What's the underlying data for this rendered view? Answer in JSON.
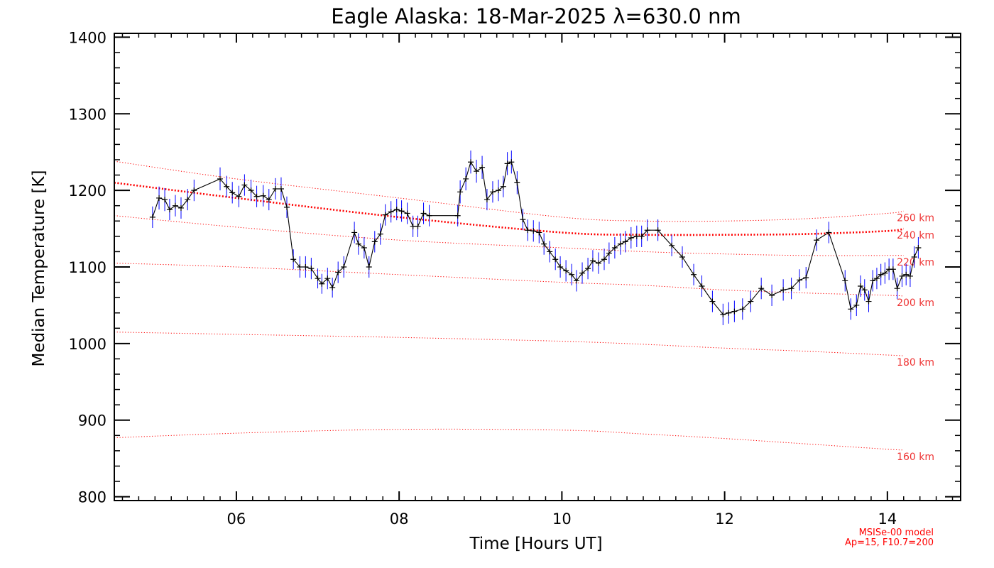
{
  "chart_data": {
    "type": "line",
    "title": "Eagle Alaska: 18-Mar-2025 λ=630.0 nm",
    "xlabel": "Time [Hours UT]",
    "ylabel": "Median Temperature [K]",
    "xlim": [
      4.5,
      14.9
    ],
    "ylim": [
      795,
      1405
    ],
    "xticks": [
      6,
      8,
      10,
      12,
      14
    ],
    "xtick_labels": [
      "06",
      "08",
      "10",
      "12",
      "14"
    ],
    "yticks": [
      800,
      900,
      1000,
      1100,
      1200,
      1300,
      1400
    ],
    "ytick_labels": [
      "800",
      "900",
      "1000",
      "1100",
      "1200",
      "1300",
      "1400"
    ],
    "grid": false,
    "series": [
      {
        "name": "Median Temperature",
        "color": "#000000",
        "errorbar_color": "#0000ff",
        "points": [
          [
            4.97,
            1165,
            14
          ],
          [
            5.05,
            1190,
            15
          ],
          [
            5.12,
            1188,
            15
          ],
          [
            5.18,
            1175,
            14
          ],
          [
            5.25,
            1180,
            14
          ],
          [
            5.32,
            1177,
            14
          ],
          [
            5.4,
            1188,
            14
          ],
          [
            5.48,
            1200,
            14
          ],
          [
            5.8,
            1215,
            15
          ],
          [
            5.88,
            1205,
            14
          ],
          [
            5.95,
            1197,
            14
          ],
          [
            6.03,
            1192,
            14
          ],
          [
            6.1,
            1207,
            14
          ],
          [
            6.18,
            1200,
            14
          ],
          [
            6.25,
            1192,
            14
          ],
          [
            6.33,
            1193,
            14
          ],
          [
            6.4,
            1188,
            14
          ],
          [
            6.48,
            1202,
            14
          ],
          [
            6.55,
            1202,
            15
          ],
          [
            6.62,
            1178,
            14
          ],
          [
            6.7,
            1110,
            13
          ],
          [
            6.78,
            1100,
            14
          ],
          [
            6.85,
            1100,
            14
          ],
          [
            6.92,
            1098,
            14
          ],
          [
            7.0,
            1085,
            13
          ],
          [
            7.05,
            1078,
            13
          ],
          [
            7.12,
            1085,
            14
          ],
          [
            7.18,
            1073,
            13
          ],
          [
            7.25,
            1093,
            14
          ],
          [
            7.32,
            1100,
            14
          ],
          [
            7.45,
            1145,
            14
          ],
          [
            7.5,
            1130,
            14
          ],
          [
            7.57,
            1125,
            14
          ],
          [
            7.63,
            1100,
            14
          ],
          [
            7.7,
            1133,
            14
          ],
          [
            7.77,
            1143,
            14
          ],
          [
            7.83,
            1168,
            14
          ],
          [
            7.9,
            1172,
            14
          ],
          [
            7.97,
            1175,
            14
          ],
          [
            8.03,
            1173,
            14
          ],
          [
            8.1,
            1170,
            14
          ],
          [
            8.17,
            1153,
            14
          ],
          [
            8.23,
            1153,
            14
          ],
          [
            8.3,
            1170,
            14
          ],
          [
            8.37,
            1167,
            14
          ],
          [
            8.72,
            1167,
            14
          ],
          [
            8.75,
            1198,
            15
          ],
          [
            8.82,
            1215,
            15
          ],
          [
            8.88,
            1237,
            15
          ],
          [
            8.95,
            1225,
            15
          ],
          [
            9.02,
            1230,
            15
          ],
          [
            9.08,
            1188,
            14
          ],
          [
            9.15,
            1198,
            14
          ],
          [
            9.22,
            1200,
            14
          ],
          [
            9.28,
            1205,
            14
          ],
          [
            9.33,
            1235,
            15
          ],
          [
            9.38,
            1237,
            15
          ],
          [
            9.45,
            1210,
            15
          ],
          [
            9.52,
            1162,
            14
          ],
          [
            9.58,
            1148,
            14
          ],
          [
            9.65,
            1147,
            14
          ],
          [
            9.72,
            1145,
            14
          ],
          [
            9.78,
            1130,
            14
          ],
          [
            9.85,
            1120,
            14
          ],
          [
            9.92,
            1110,
            14
          ],
          [
            9.98,
            1100,
            14
          ],
          [
            10.05,
            1095,
            14
          ],
          [
            10.12,
            1090,
            14
          ],
          [
            10.18,
            1082,
            14
          ],
          [
            10.25,
            1092,
            14
          ],
          [
            10.32,
            1098,
            14
          ],
          [
            10.38,
            1108,
            14
          ],
          [
            10.45,
            1105,
            14
          ],
          [
            10.52,
            1110,
            14
          ],
          [
            10.58,
            1118,
            14
          ],
          [
            10.65,
            1125,
            14
          ],
          [
            10.72,
            1130,
            14
          ],
          [
            10.78,
            1133,
            14
          ],
          [
            10.85,
            1138,
            14
          ],
          [
            10.92,
            1140,
            14
          ],
          [
            10.98,
            1140,
            14
          ],
          [
            11.05,
            1148,
            14
          ],
          [
            11.18,
            1148,
            14
          ],
          [
            11.35,
            1128,
            14
          ],
          [
            11.48,
            1113,
            14
          ],
          [
            11.62,
            1090,
            14
          ],
          [
            11.72,
            1075,
            14
          ],
          [
            11.85,
            1055,
            14
          ],
          [
            11.98,
            1038,
            14
          ],
          [
            12.05,
            1040,
            14
          ],
          [
            12.12,
            1042,
            14
          ],
          [
            12.22,
            1045,
            14
          ],
          [
            12.32,
            1055,
            14
          ],
          [
            12.45,
            1072,
            14
          ],
          [
            12.58,
            1063,
            14
          ],
          [
            12.72,
            1070,
            14
          ],
          [
            12.82,
            1072,
            14
          ],
          [
            12.92,
            1083,
            14
          ],
          [
            13.0,
            1086,
            14
          ],
          [
            13.13,
            1135,
            14
          ],
          [
            13.28,
            1145,
            14
          ],
          [
            13.48,
            1082,
            14
          ],
          [
            13.55,
            1045,
            14
          ],
          [
            13.62,
            1050,
            14
          ],
          [
            13.67,
            1075,
            14
          ],
          [
            13.72,
            1070,
            14
          ],
          [
            13.77,
            1055,
            14
          ],
          [
            13.82,
            1082,
            14
          ],
          [
            13.87,
            1085,
            14
          ],
          [
            13.92,
            1090,
            14
          ],
          [
            13.97,
            1092,
            14
          ],
          [
            14.02,
            1097,
            14
          ],
          [
            14.07,
            1097,
            14
          ],
          [
            14.12,
            1072,
            14
          ],
          [
            14.18,
            1088,
            14
          ],
          [
            14.23,
            1090,
            14
          ],
          [
            14.28,
            1088,
            14
          ],
          [
            14.33,
            1113,
            14
          ],
          [
            14.38,
            1125,
            14
          ]
        ]
      }
    ],
    "model_curves": [
      {
        "label": "260 km",
        "color": "#ff0000",
        "x": [
          4.5,
          6,
          8,
          10,
          11,
          12,
          13,
          14,
          14.2
        ],
        "y": [
          1238,
          1215,
          1190,
          1165,
          1160,
          1160,
          1163,
          1170,
          1173
        ]
      },
      {
        "label": "240 km",
        "color": "#ff0000",
        "emphasized": true,
        "x": [
          4.5,
          6,
          8,
          10,
          11,
          12,
          13,
          14,
          14.2
        ],
        "y": [
          1210,
          1190,
          1165,
          1145,
          1142,
          1142,
          1143,
          1147,
          1150
        ]
      },
      {
        "label": "220 km",
        "color": "#ff0000",
        "x": [
          4.5,
          6,
          8,
          10,
          11,
          12,
          13,
          14,
          14.2
        ],
        "y": [
          1167,
          1152,
          1135,
          1125,
          1120,
          1117,
          1115,
          1115,
          1115
        ]
      },
      {
        "label": "200 km",
        "color": "#ff0000",
        "x": [
          4.5,
          6,
          8,
          10,
          11,
          12,
          13,
          14,
          14.2
        ],
        "y": [
          1105,
          1100,
          1090,
          1080,
          1076,
          1070,
          1066,
          1063,
          1062
        ]
      },
      {
        "label": "180 km",
        "color": "#ff0000",
        "x": [
          4.5,
          6,
          8,
          10,
          11,
          12,
          13,
          14,
          14.2
        ],
        "y": [
          1015,
          1012,
          1008,
          1003,
          999,
          994,
          990,
          985,
          984
        ]
      },
      {
        "label": "160 km",
        "color": "#ff0000",
        "x": [
          4.5,
          6,
          8,
          10,
          11,
          12,
          13,
          14,
          14.2
        ],
        "y": [
          877,
          883,
          888,
          887,
          882,
          876,
          869,
          862,
          861
        ]
      }
    ],
    "annotations": [
      "MSISe-00 model",
      "Ap=15, F10.7=200"
    ]
  }
}
